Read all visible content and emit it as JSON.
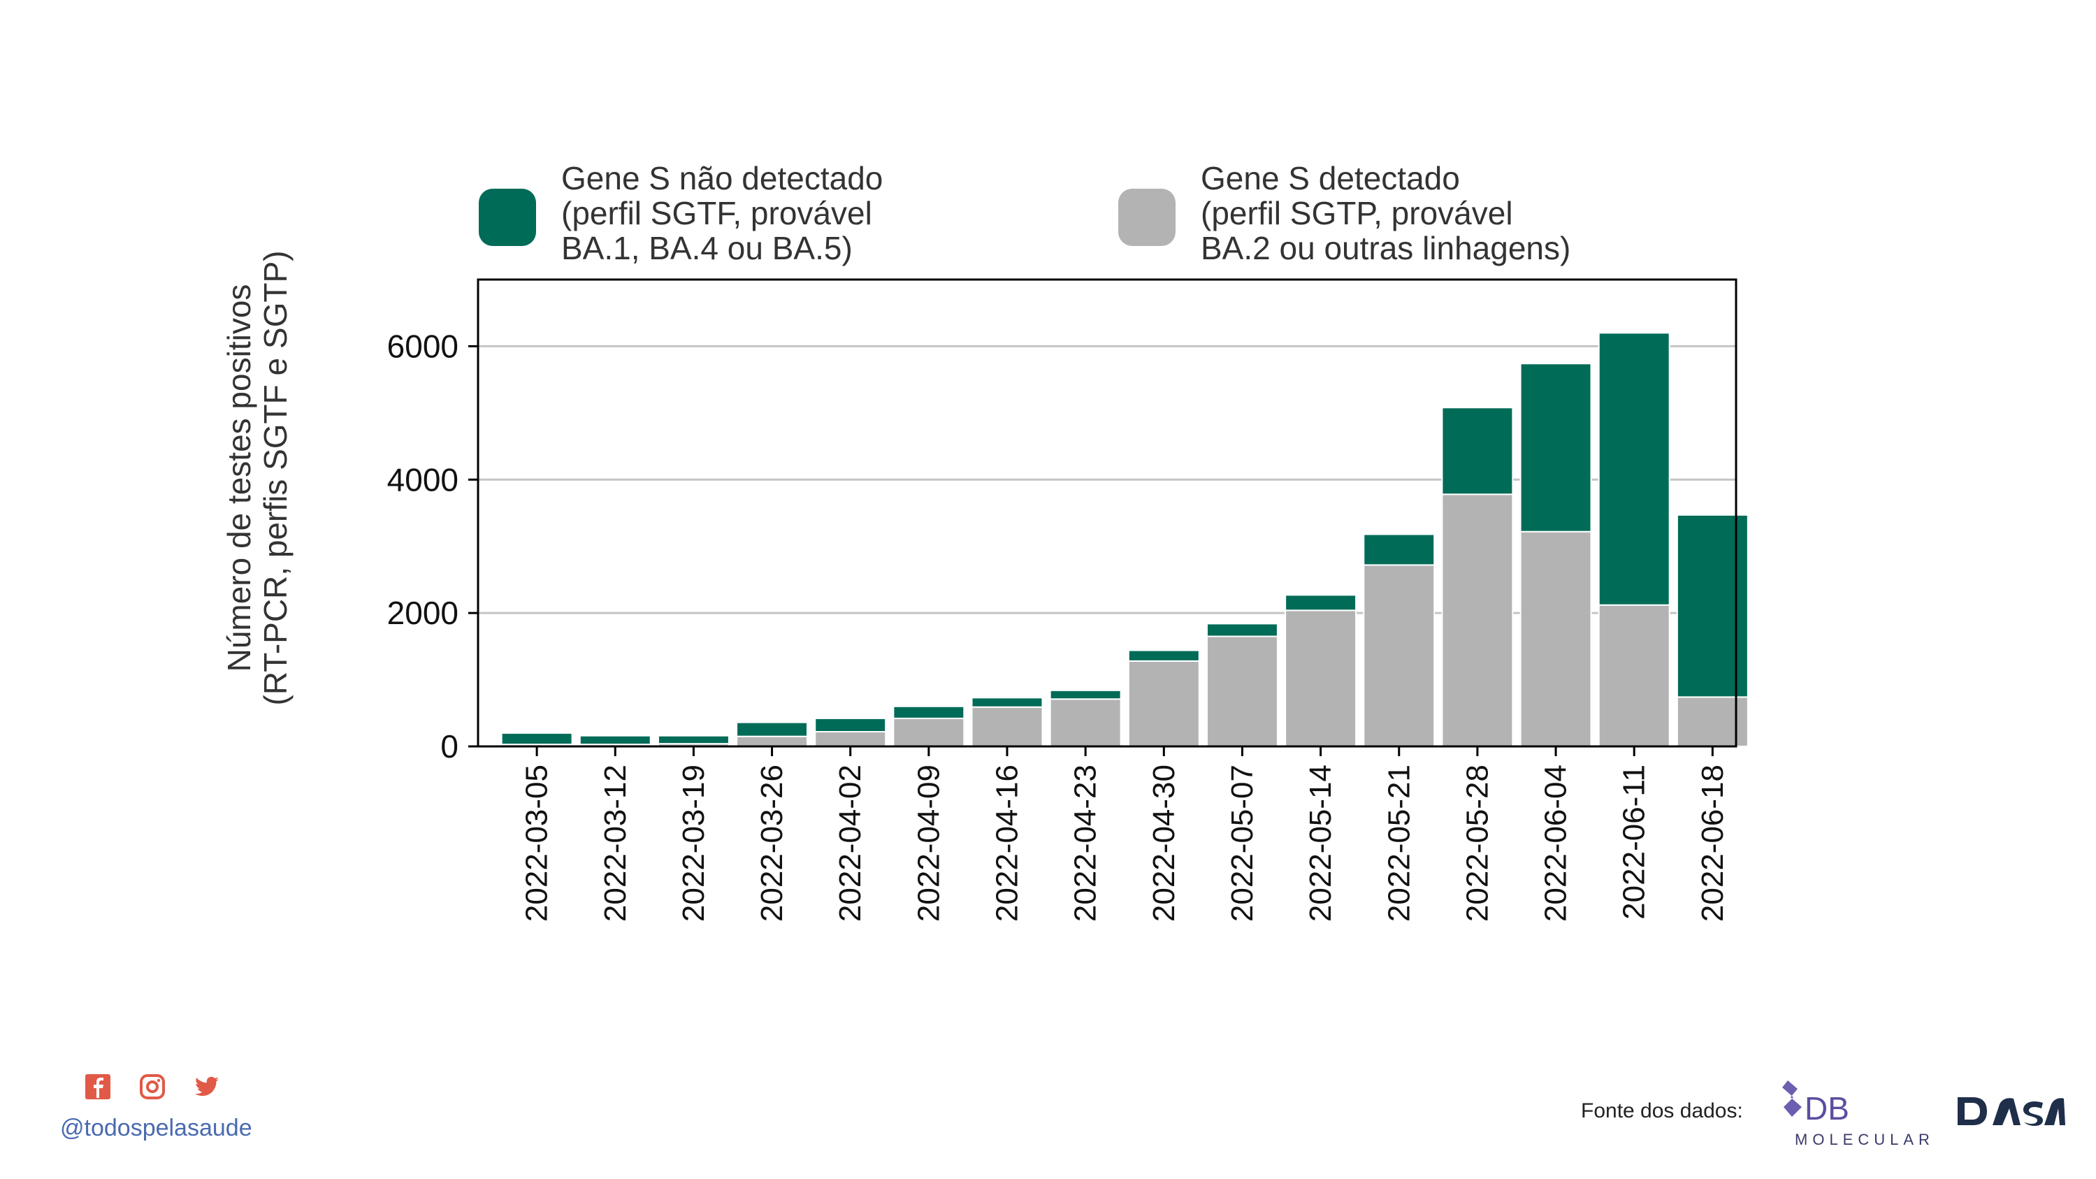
{
  "legend": {
    "items": [
      {
        "lines": [
          "Gene S não detectado",
          "(perfil SGTF, provável",
          "BA.1, BA.4 ou BA.5)"
        ],
        "color": "#006b57"
      },
      {
        "lines": [
          "Gene S detectado",
          "(perfil SGTP, provável",
          "BA.2 ou outras linhagens)"
        ],
        "color": "#b3b3b3"
      }
    ]
  },
  "chart_data": {
    "type": "bar",
    "stacked": true,
    "ylabel": [
      "Número de testes positivos",
      "(RT-PCR, perfis SGTF e SGTP)"
    ],
    "ylim": [
      0,
      7000
    ],
    "yticks": [
      0,
      2000,
      4000,
      6000
    ],
    "grid": "horizontal",
    "categories": [
      "2022-03-05",
      "2022-03-12",
      "2022-03-19",
      "2022-03-26",
      "2022-04-02",
      "2022-04-09",
      "2022-04-16",
      "2022-04-23",
      "2022-04-30",
      "2022-05-07",
      "2022-05-14",
      "2022-05-21",
      "2022-05-28",
      "2022-06-04",
      "2022-06-11",
      "2022-06-18"
    ],
    "series": [
      {
        "name": "Gene S detectado (perfil SGTP, provável BA.2 ou outras linhagens)",
        "color": "#b3b3b3",
        "values": [
          30,
          30,
          40,
          150,
          220,
          420,
          590,
          710,
          1280,
          1650,
          2040,
          2720,
          3780,
          3220,
          2120,
          740
        ]
      },
      {
        "name": "Gene S não detectado (perfil SGTF, provável BA.1, BA.4 ou BA.5)",
        "color": "#006b57",
        "values": [
          170,
          130,
          120,
          210,
          200,
          180,
          140,
          130,
          160,
          190,
          230,
          460,
          1300,
          2520,
          4080,
          2730
        ]
      }
    ]
  },
  "footer": {
    "handle": "@todospelasaude",
    "social_icons": [
      "facebook-icon",
      "instagram-icon",
      "twitter-icon"
    ],
    "social_color": "#e05a47",
    "source_label": "Fonte dos dados:",
    "logo_db_main": "DB",
    "logo_db_sub": "MOLECULAR",
    "logo_dasa": "DASA"
  }
}
